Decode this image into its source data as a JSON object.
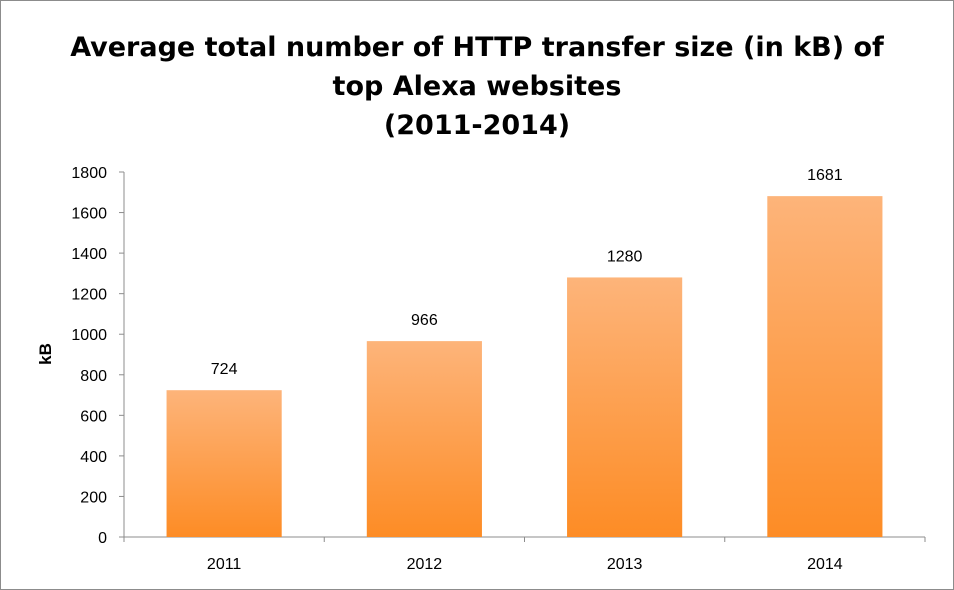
{
  "chart_data": {
    "type": "bar",
    "title": "Average total number of HTTP transfer size (in kB) of\ntop Alexa websites\n(2011-2014)",
    "xlabel": "",
    "ylabel": "kB",
    "categories": [
      "2011",
      "2012",
      "2013",
      "2014"
    ],
    "values": [
      724,
      966,
      1280,
      1681
    ],
    "data_labels": [
      "724",
      "966",
      "1280",
      "1681"
    ],
    "ylim": [
      0,
      1800
    ],
    "yticks": [
      0,
      200,
      400,
      600,
      800,
      1000,
      1200,
      1400,
      1600,
      1800
    ],
    "grid": false,
    "legend": "none",
    "bar_color_top": "#fdb47a",
    "bar_color_bottom": "#fd8c25"
  }
}
